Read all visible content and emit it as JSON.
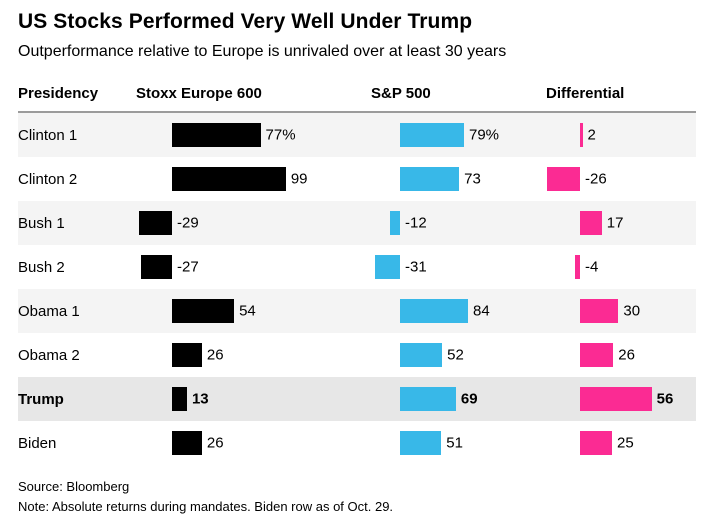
{
  "header": {
    "title": "US Stocks Performed Very Well Under Trump",
    "subtitle": "Outperformance relative to Europe is unrivaled over at least 30 years"
  },
  "chart_data": {
    "type": "bar",
    "orientation": "horizontal",
    "columns": [
      "Presidency",
      "Stoxx Europe 600",
      "S&P 500",
      "Differential"
    ],
    "colors": {
      "stoxx_europe_600": "#000000",
      "sp500": "#38b8e8",
      "differential": "#fb2b93",
      "alt_row_bg": "#f4f4f4",
      "highlight_row_bg": "#e7e7e7"
    },
    "rows": [
      {
        "label": "Clinton 1",
        "values": [
          77,
          79,
          2
        ],
        "display": [
          "77%",
          "79%",
          "2"
        ],
        "highlight": false
      },
      {
        "label": "Clinton 2",
        "values": [
          99,
          73,
          -26
        ],
        "display": [
          "99",
          "73",
          "-26"
        ],
        "highlight": false
      },
      {
        "label": "Bush 1",
        "values": [
          -29,
          -12,
          17
        ],
        "display": [
          "-29",
          "-12",
          "17"
        ],
        "highlight": false
      },
      {
        "label": "Bush 2",
        "values": [
          -27,
          -31,
          -4
        ],
        "display": [
          "-27",
          "-31",
          "-4"
        ],
        "highlight": false
      },
      {
        "label": "Obama 1",
        "values": [
          54,
          84,
          30
        ],
        "display": [
          "54",
          "84",
          "30"
        ],
        "highlight": false
      },
      {
        "label": "Obama 2",
        "values": [
          26,
          52,
          26
        ],
        "display": [
          "26",
          "52",
          "26"
        ],
        "highlight": false
      },
      {
        "label": "Trump",
        "values": [
          13,
          69,
          56
        ],
        "display": [
          "13",
          "69",
          "56"
        ],
        "highlight": true
      },
      {
        "label": "Biden",
        "values": [
          26,
          51,
          25
        ],
        "display": [
          "26",
          "51",
          "25"
        ],
        "highlight": false
      }
    ]
  },
  "footer": {
    "source": "Source: Bloomberg",
    "note": "Note: Absolute returns during mandates. Biden row as of Oct. 29."
  }
}
